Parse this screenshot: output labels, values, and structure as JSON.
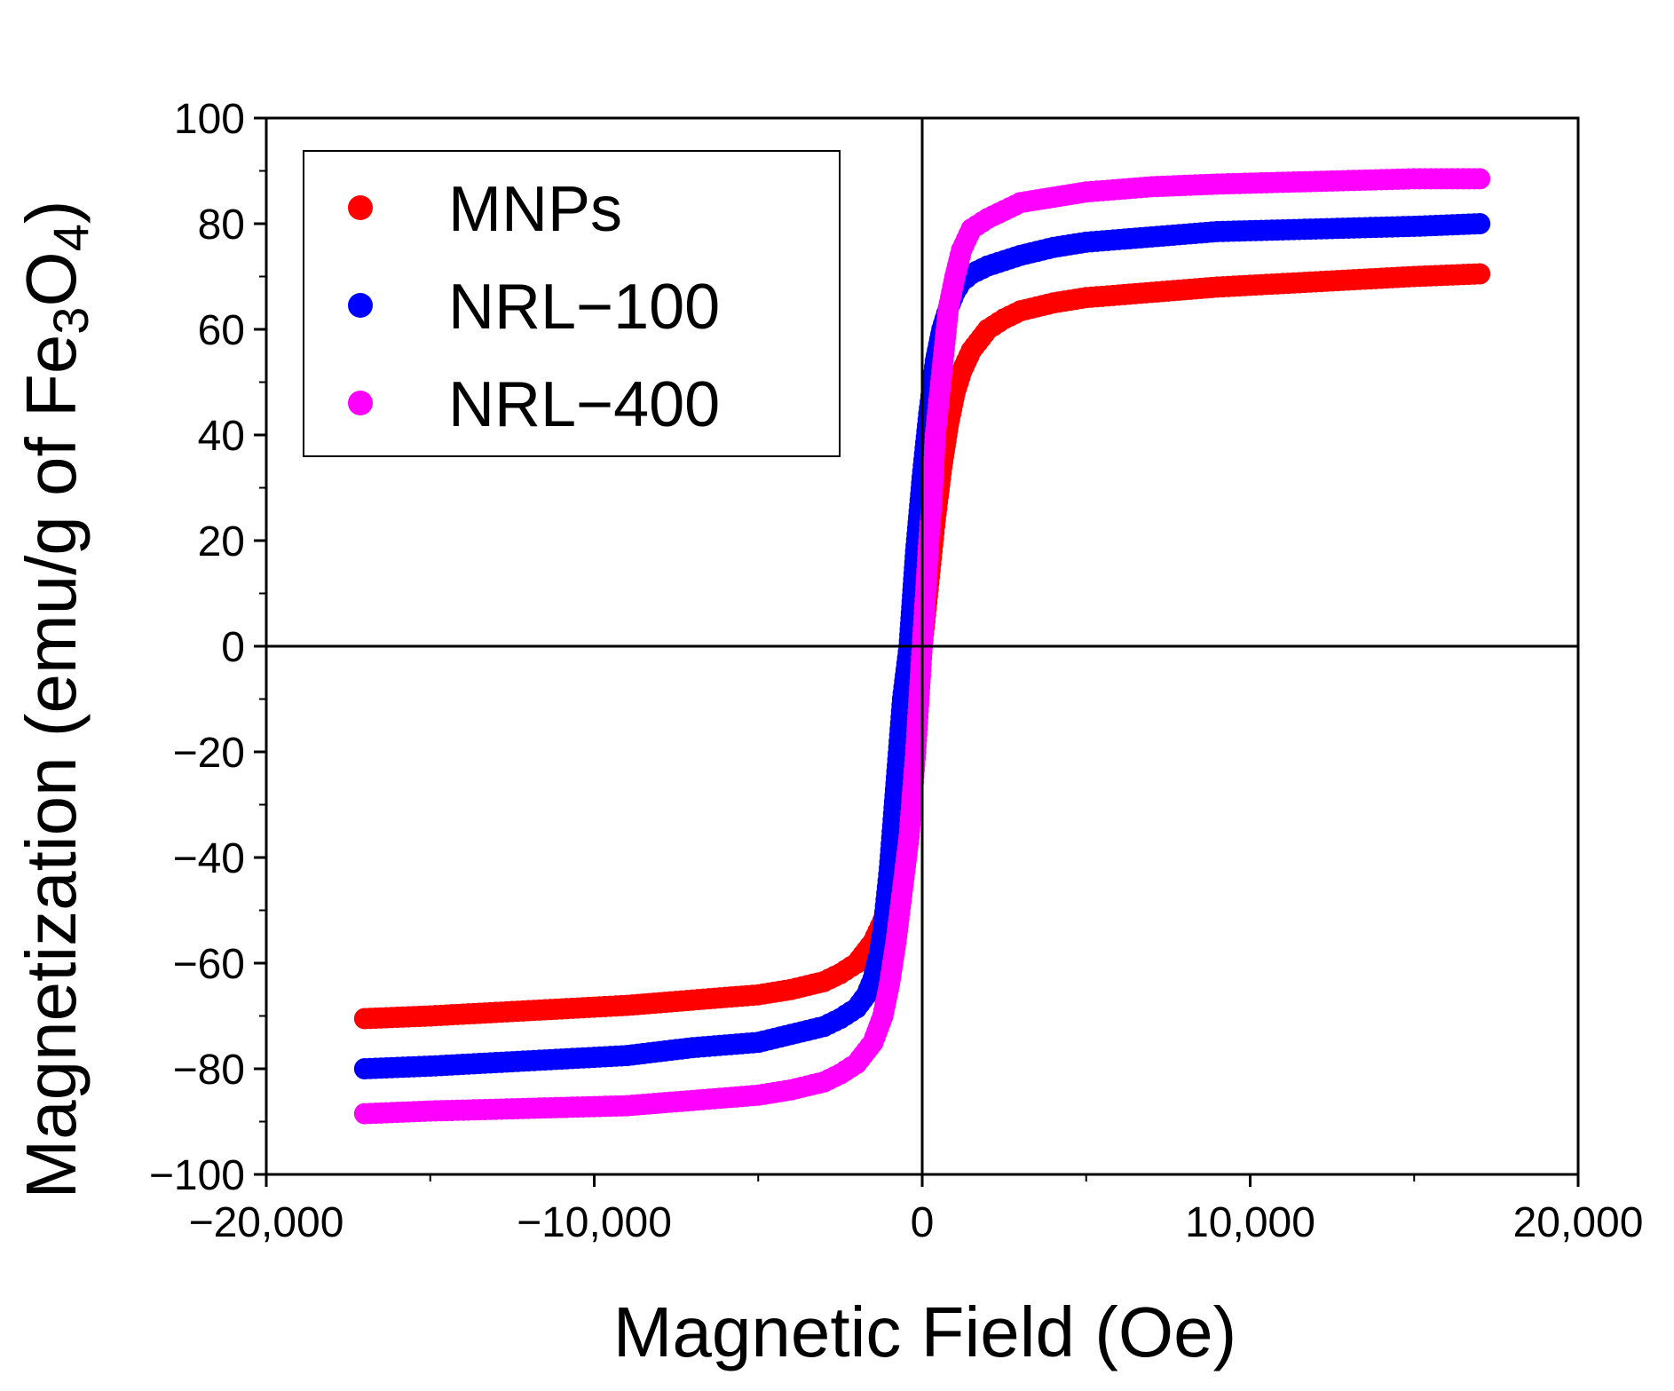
{
  "chart_data": {
    "type": "scatter",
    "title": "",
    "xlabel": "Magnetic Field (Oe)",
    "ylabel": {
      "prefix": "Magnetization (emu/g of Fe",
      "sub1": "3",
      "mid": "O",
      "sub2": "4",
      "suffix": ")"
    },
    "xlim": [
      -20000,
      20000
    ],
    "ylim": [
      -100,
      100
    ],
    "x_ticks": [
      -20000,
      -10000,
      0,
      10000,
      20000
    ],
    "x_tick_labels": [
      "−20,000",
      "−10,000",
      "0",
      "10,000",
      "20,000"
    ],
    "y_ticks": [
      -100,
      -80,
      -60,
      -40,
      -20,
      0,
      20,
      40,
      60,
      80,
      100
    ],
    "y_tick_labels": [
      "−100",
      "−80",
      "−60",
      "−40",
      "−20",
      "0",
      "20",
      "40",
      "60",
      "80",
      "100"
    ],
    "zero_lines": true,
    "grid": false,
    "legend_position": "top-left",
    "series": [
      {
        "name": "MNPs",
        "color": "#ff0000",
        "x": [
          -17000,
          -15000,
          -12000,
          -9000,
          -7000,
          -5000,
          -4000,
          -3000,
          -2500,
          -2000,
          -1500,
          -1200,
          -1000,
          -800,
          -600,
          -400,
          -300,
          -200,
          -100,
          0,
          100,
          200,
          300,
          400,
          600,
          800,
          1000,
          1200,
          1500,
          2000,
          2500,
          3000,
          4000,
          5000,
          7000,
          9000,
          12000,
          15000,
          17000
        ],
        "values": [
          -70.5,
          -70,
          -69,
          -68,
          -67,
          -66,
          -65,
          -63.5,
          -62,
          -60,
          -56,
          -52,
          -48,
          -42,
          -34,
          -24,
          -18,
          -12,
          -6,
          0,
          6,
          12,
          18,
          24,
          34,
          42,
          48,
          52,
          56,
          60,
          62,
          63.5,
          65,
          66,
          67,
          68,
          69,
          70,
          70.5
        ]
      },
      {
        "name": "NRL−100",
        "color": "#0000ff",
        "x": [
          -17000,
          -15000,
          -12000,
          -9000,
          -7000,
          -5000,
          -4000,
          -3000,
          -2500,
          -2000,
          -1700,
          -1500,
          -1300,
          -1200,
          -1100,
          -1000,
          -900,
          -800,
          -700,
          -600,
          -400,
          -200,
          0,
          200,
          400,
          600,
          800,
          1000,
          1200,
          1500,
          2000,
          2500,
          3000,
          4000,
          5000,
          7000,
          9000,
          12000,
          15000,
          17000
        ],
        "values": [
          -80,
          -79.5,
          -78.5,
          -77.5,
          -76,
          -75,
          -73.5,
          -72,
          -70.5,
          -68.5,
          -66,
          -63,
          -58,
          -54,
          -48,
          -42,
          -34,
          -26,
          -18,
          -10,
          0,
          18,
          32,
          44,
          54,
          60,
          64,
          67,
          69,
          70.5,
          72,
          73,
          74,
          75.5,
          76.5,
          77.5,
          78.5,
          79,
          79.5,
          80
        ]
      },
      {
        "name": "NRL−400",
        "color": "#ff00ff",
        "x": [
          -17000,
          -15000,
          -12000,
          -9000,
          -7000,
          -5000,
          -4000,
          -3000,
          -2500,
          -2000,
          -1500,
          -1200,
          -1000,
          -800,
          -600,
          -400,
          -300,
          -200,
          -100,
          0,
          100,
          200,
          300,
          400,
          600,
          800,
          1000,
          1200,
          1500,
          2000,
          2500,
          3000,
          4000,
          5000,
          7000,
          9000,
          12000,
          15000,
          17000
        ],
        "values": [
          -88.5,
          -88,
          -87.5,
          -87,
          -86,
          -85,
          -84,
          -82.5,
          -81,
          -79,
          -75,
          -70,
          -64,
          -56,
          -46,
          -36,
          -28,
          -20,
          -10,
          0,
          10,
          20,
          28,
          40,
          52,
          64,
          70,
          75,
          79,
          81,
          82.5,
          84,
          85,
          86,
          87,
          87.5,
          88,
          88.5,
          88.5
        ]
      }
    ]
  }
}
